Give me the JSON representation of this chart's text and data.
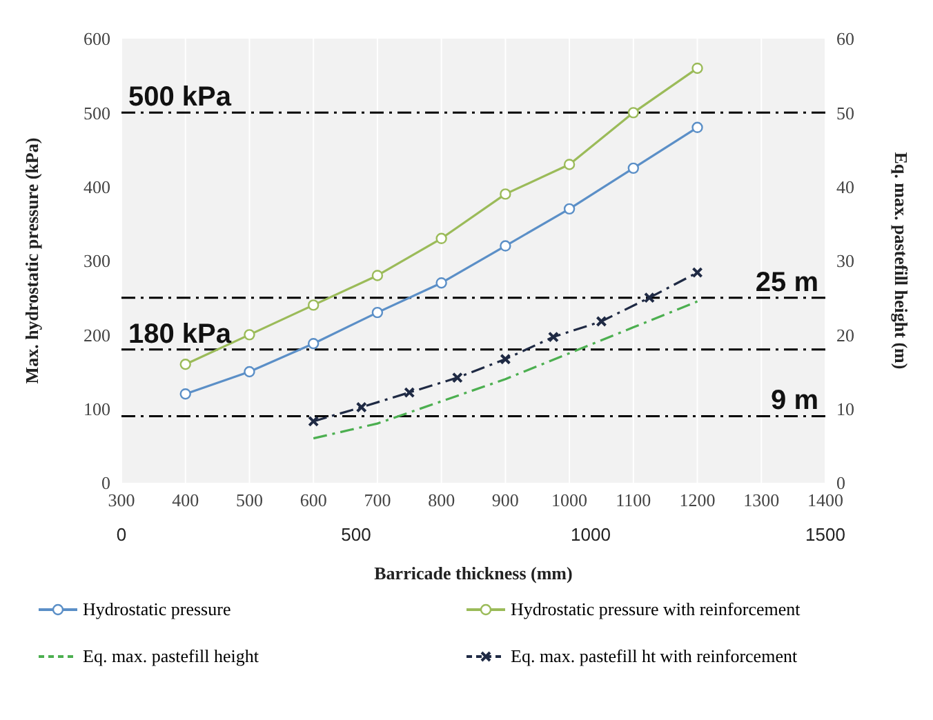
{
  "chart_data": {
    "type": "line",
    "xlabel": "Barricade thickness (mm)",
    "ylabel": "Max. hydrostatic pressure (kPa)",
    "y2label": "Eq. max. pastefill height (m)",
    "xlim": [
      300,
      1400
    ],
    "xticks": [
      300,
      400,
      500,
      600,
      700,
      800,
      900,
      1000,
      1100,
      1200,
      1300,
      1400
    ],
    "x2lim": [
      0,
      1500
    ],
    "x2ticks": [
      0,
      500,
      1000,
      1500
    ],
    "ylim": [
      0,
      600
    ],
    "yticks": [
      0,
      100,
      200,
      300,
      400,
      500,
      600
    ],
    "y2lim": [
      0,
      60
    ],
    "y2ticks": [
      0,
      10,
      20,
      30,
      40,
      50,
      60
    ],
    "grid": "x",
    "legend": "bottom",
    "series": [
      {
        "name": "Hydrostatic pressure",
        "color": "#5b8fc7",
        "marker": "circle",
        "line_style": "solid",
        "x": [
          400,
          500,
          600,
          700,
          800,
          900,
          1000,
          1100,
          1200
        ],
        "values": [
          120,
          150,
          188,
          230,
          270,
          320,
          370,
          425,
          480
        ]
      },
      {
        "name": "Hydrostatic pressure with  reinforcement",
        "color": "#9bbb59",
        "marker": "circle",
        "line_style": "solid",
        "x": [
          400,
          500,
          600,
          700,
          800,
          900,
          1000,
          1100,
          1200
        ],
        "values": [
          160,
          200,
          240,
          280,
          330,
          390,
          430,
          500,
          560
        ]
      },
      {
        "name": "Eq. max. pastefill height",
        "color": "#4caf50",
        "marker": "none",
        "line_style": "dashed",
        "axis": "y2",
        "x": [
          600,
          700,
          800,
          900,
          1000,
          1100,
          1200
        ],
        "values": [
          6,
          8,
          11,
          14,
          17.5,
          21,
          24.5
        ]
      },
      {
        "name": "Eq. max. pastefill ht with reinforcement",
        "color": "#1f2a44",
        "marker": "cross",
        "line_style": "dashed",
        "axis": "y2",
        "x": [
          600,
          675,
          750,
          825,
          900,
          975,
          1050,
          1125,
          1200
        ],
        "values": [
          8.3,
          10.2,
          12.2,
          14.2,
          16.7,
          19.7,
          21.8,
          25,
          28.4
        ]
      }
    ],
    "ref_lines": [
      {
        "axis": "y",
        "value": 500,
        "label": "500 kPa",
        "color": "#000000",
        "line_style": "dashed"
      },
      {
        "axis": "y",
        "value": 180,
        "label": "180 kPa",
        "color": "#000000",
        "line_style": "dashed"
      },
      {
        "axis": "y2",
        "value": 25,
        "label": "25 m",
        "color": "#000000",
        "line_style": "dashed"
      },
      {
        "axis": "y2",
        "value": 9,
        "label": "9 m",
        "color": "#000000",
        "line_style": "dashed"
      }
    ]
  }
}
